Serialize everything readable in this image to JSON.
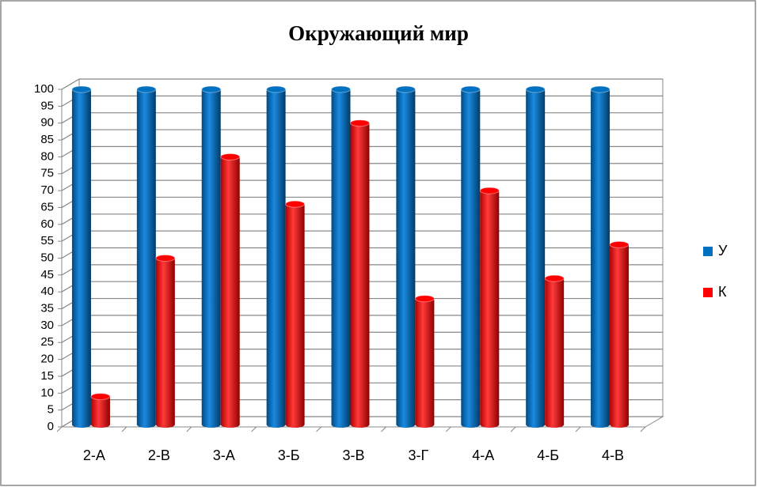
{
  "chart_data": {
    "type": "bar3d",
    "title": "Окружающий мир",
    "categories": [
      "2-А",
      "2-В",
      "3-А",
      "3-Б",
      "3-В",
      "3-Г",
      "4-А",
      "4-Б",
      "4-В"
    ],
    "series": [
      {
        "name": "У",
        "color": "#0070c0",
        "values": [
          100,
          100,
          100,
          100,
          100,
          100,
          100,
          100,
          100
        ]
      },
      {
        "name": "К",
        "color": "#ff0000",
        "values": [
          9,
          50,
          80,
          66,
          90,
          38,
          70,
          44,
          54
        ]
      }
    ],
    "ylim": [
      0,
      100
    ],
    "yticks": [
      0,
      5,
      10,
      15,
      20,
      25,
      30,
      35,
      40,
      45,
      50,
      55,
      60,
      65,
      70,
      75,
      80,
      85,
      90,
      95,
      100
    ],
    "grid": true,
    "legend": "right"
  }
}
